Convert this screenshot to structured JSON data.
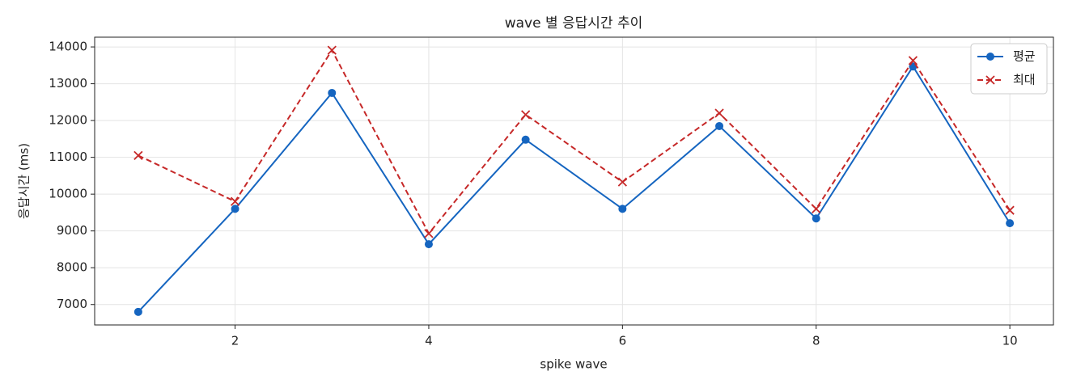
{
  "chart_data": {
    "type": "line",
    "title": "wave 별 응답시간 추이",
    "xlabel": "spike wave",
    "ylabel": "응답시간 (ms)",
    "x": [
      1,
      2,
      3,
      4,
      5,
      6,
      7,
      8,
      9,
      10
    ],
    "series": [
      {
        "name": "평균",
        "color": "#1565c0",
        "marker": "circle",
        "linestyle": "solid",
        "values": [
          6800,
          9600,
          12750,
          8640,
          11480,
          9600,
          11850,
          9340,
          13470,
          9210
        ]
      },
      {
        "name": "최대",
        "color": "#c62828",
        "marker": "x",
        "linestyle": "dashed",
        "values": [
          11050,
          9800,
          13910,
          8930,
          12160,
          10330,
          12200,
          9600,
          13630,
          9560
        ]
      }
    ],
    "xlim": [
      0.55,
      10.45
    ],
    "xticks": [
      2,
      4,
      6,
      8,
      10
    ],
    "ylim": [
      6445,
      14265
    ],
    "yticks": [
      7000,
      8000,
      9000,
      10000,
      11000,
      12000,
      13000,
      14000
    ],
    "grid": true,
    "legend": "upper right"
  }
}
